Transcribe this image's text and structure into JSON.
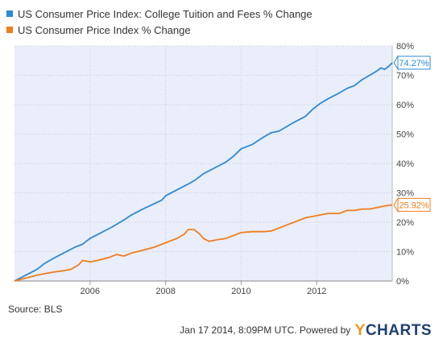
{
  "chart_data": {
    "type": "line",
    "title": "",
    "xlabel": "",
    "ylabel": "",
    "x_ticks": [
      "2006",
      "2008",
      "2010",
      "2012"
    ],
    "y_ticks": [
      "0%",
      "10%",
      "20%",
      "30%",
      "40%",
      "50%",
      "60%",
      "70%",
      "80%"
    ],
    "xlim": [
      2004.0,
      2014.0
    ],
    "ylim": [
      0,
      80
    ],
    "grid": true,
    "legend_position": "top-left",
    "series": [
      {
        "name": "US Consumer Price Index: College Tuition and Fees % Change",
        "color": "#2b8ad6",
        "end_label": "74.27%",
        "points": [
          [
            2004.0,
            0.0
          ],
          [
            2004.3,
            2.0
          ],
          [
            2004.6,
            4.0
          ],
          [
            2004.8,
            6.0
          ],
          [
            2005.0,
            7.5
          ],
          [
            2005.3,
            9.5
          ],
          [
            2005.6,
            11.5
          ],
          [
            2005.8,
            12.5
          ],
          [
            2006.0,
            14.5
          ],
          [
            2006.3,
            16.5
          ],
          [
            2006.6,
            18.5
          ],
          [
            2006.9,
            20.8
          ],
          [
            2007.1,
            22.5
          ],
          [
            2007.4,
            24.5
          ],
          [
            2007.7,
            26.3
          ],
          [
            2007.9,
            27.5
          ],
          [
            2008.0,
            29.0
          ],
          [
            2008.3,
            31.0
          ],
          [
            2008.6,
            33.0
          ],
          [
            2008.8,
            34.5
          ],
          [
            2009.0,
            36.5
          ],
          [
            2009.3,
            38.5
          ],
          [
            2009.6,
            40.5
          ],
          [
            2009.8,
            42.5
          ],
          [
            2010.0,
            45.0
          ],
          [
            2010.3,
            46.5
          ],
          [
            2010.6,
            49.0
          ],
          [
            2010.8,
            50.5
          ],
          [
            2011.0,
            51.0
          ],
          [
            2011.2,
            52.5
          ],
          [
            2011.4,
            54.0
          ],
          [
            2011.7,
            56.0
          ],
          [
            2011.9,
            58.5
          ],
          [
            2012.1,
            60.5
          ],
          [
            2012.3,
            62.0
          ],
          [
            2012.6,
            64.0
          ],
          [
            2012.8,
            65.5
          ],
          [
            2013.0,
            66.5
          ],
          [
            2013.2,
            68.5
          ],
          [
            2013.4,
            70.0
          ],
          [
            2013.6,
            71.5
          ],
          [
            2013.7,
            72.5
          ],
          [
            2013.8,
            72.0
          ],
          [
            2013.9,
            73.0
          ],
          [
            2014.0,
            74.27
          ]
        ]
      },
      {
        "name": "US Consumer Price Index % Change",
        "color": "#f07c1b",
        "end_label": "25.92%",
        "points": [
          [
            2004.0,
            0.0
          ],
          [
            2004.3,
            1.0
          ],
          [
            2004.6,
            2.0
          ],
          [
            2004.8,
            2.5
          ],
          [
            2005.0,
            3.0
          ],
          [
            2005.3,
            3.5
          ],
          [
            2005.5,
            4.0
          ],
          [
            2005.7,
            5.5
          ],
          [
            2005.8,
            7.0
          ],
          [
            2006.0,
            6.5
          ],
          [
            2006.2,
            7.0
          ],
          [
            2006.5,
            8.0
          ],
          [
            2006.7,
            9.0
          ],
          [
            2006.9,
            8.5
          ],
          [
            2007.1,
            9.5
          ],
          [
            2007.4,
            10.5
          ],
          [
            2007.7,
            11.5
          ],
          [
            2007.9,
            12.5
          ],
          [
            2008.1,
            13.5
          ],
          [
            2008.3,
            14.5
          ],
          [
            2008.5,
            16.0
          ],
          [
            2008.6,
            17.5
          ],
          [
            2008.75,
            17.5
          ],
          [
            2008.9,
            16.0
          ],
          [
            2009.0,
            14.5
          ],
          [
            2009.15,
            13.5
          ],
          [
            2009.35,
            14.0
          ],
          [
            2009.6,
            14.5
          ],
          [
            2009.8,
            15.5
          ],
          [
            2010.0,
            16.5
          ],
          [
            2010.3,
            16.8
          ],
          [
            2010.6,
            16.8
          ],
          [
            2010.8,
            17.0
          ],
          [
            2011.0,
            18.0
          ],
          [
            2011.2,
            19.0
          ],
          [
            2011.5,
            20.5
          ],
          [
            2011.7,
            21.5
          ],
          [
            2011.9,
            22.0
          ],
          [
            2012.1,
            22.5
          ],
          [
            2012.3,
            23.0
          ],
          [
            2012.6,
            23.0
          ],
          [
            2012.8,
            24.0
          ],
          [
            2013.0,
            24.0
          ],
          [
            2013.2,
            24.5
          ],
          [
            2013.4,
            24.5
          ],
          [
            2013.6,
            25.0
          ],
          [
            2013.8,
            25.5
          ],
          [
            2014.0,
            25.92
          ]
        ]
      }
    ]
  },
  "source_text": "Source: BLS",
  "footer": {
    "timestamp": "Jan 17 2014, 8:09PM UTC.",
    "powered_by": "Powered by",
    "brand_y": "Y",
    "brand_rest": "CHARTS"
  }
}
